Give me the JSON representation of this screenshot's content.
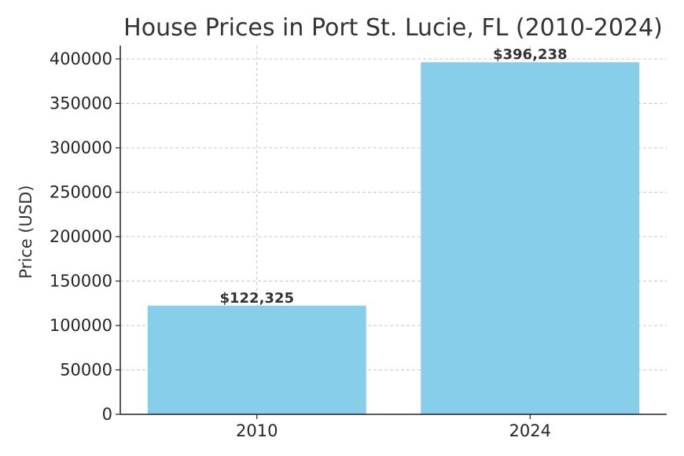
{
  "chart_data": {
    "type": "bar",
    "title": "House Prices in Port St. Lucie, FL (2010-2024)",
    "xlabel": "",
    "ylabel": "Price (USD)",
    "categories": [
      "2010",
      "2024"
    ],
    "values": [
      122325,
      396238
    ],
    "data_labels": [
      "$122,325",
      "$396,238"
    ],
    "ylim": [
      0,
      415000
    ],
    "yticks": [
      0,
      50000,
      100000,
      150000,
      200000,
      250000,
      300000,
      350000,
      400000
    ],
    "ytick_labels": [
      "0",
      "50000",
      "100000",
      "150000",
      "200000",
      "250000",
      "300000",
      "350000",
      "400000"
    ],
    "grid": true,
    "bar_color": "#87CEEB"
  }
}
